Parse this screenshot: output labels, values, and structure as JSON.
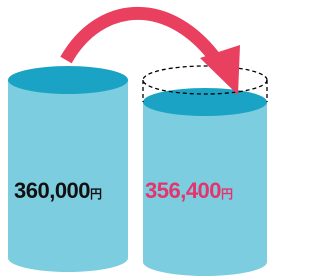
{
  "before": {
    "amount": "360,000",
    "unit": "円"
  },
  "after": {
    "amount": "356,400",
    "unit": "円"
  }
}
